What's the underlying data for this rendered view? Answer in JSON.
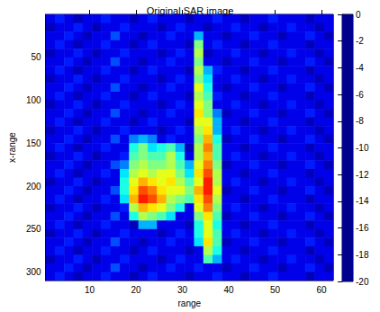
{
  "chart_data": {
    "type": "heatmap",
    "title": "Original SAR image",
    "x_label": "range",
    "y_label": "x-range",
    "xlim": [
      0.5,
      62.5
    ],
    "xticks": [
      10,
      20,
      30,
      40,
      50,
      60
    ],
    "ylim": [
      0,
      310
    ],
    "yticks": [
      50,
      100,
      150,
      200,
      250,
      300
    ],
    "x": [
      1.5,
      3.5,
      5.5,
      7.5,
      9.5,
      11.5,
      13.5,
      15.5,
      17.5,
      19.5,
      21.5,
      23.5,
      25.5,
      27.5,
      29.5,
      31.5,
      33.5,
      35.5,
      37.5,
      39.5,
      41.5,
      43.5,
      45.5,
      47.5,
      49.5,
      51.5,
      53.5,
      55.5,
      57.5,
      59.5,
      61.5
    ],
    "y": [
      5,
      15,
      25,
      35,
      45,
      55,
      65,
      75,
      85,
      95,
      105,
      115,
      125,
      135,
      145,
      155,
      165,
      175,
      185,
      195,
      205,
      215,
      225,
      235,
      245,
      255,
      265,
      275,
      285,
      295,
      305
    ],
    "cells": [
      [
        -18,
        -17,
        -18,
        -19,
        -18,
        -18,
        -17,
        -18,
        -18,
        -19,
        -18,
        -17,
        -18,
        -18,
        -18,
        -19,
        -18,
        -18,
        -17,
        -18,
        -18,
        -19,
        -18,
        -18,
        -17,
        -18,
        -18,
        -18,
        -19,
        -18,
        -18
      ],
      [
        -19,
        -18,
        -18,
        -17,
        -18,
        -19,
        -18,
        -18,
        -17,
        -18,
        -18,
        -18,
        -19,
        -18,
        -17,
        -18,
        -18,
        -19,
        -18,
        -18,
        -17,
        -18,
        -18,
        -19,
        -18,
        -18,
        -17,
        -18,
        -18,
        -19,
        -18
      ],
      [
        -18,
        -18,
        -17,
        -18,
        -19,
        -18,
        -18,
        -16,
        -18,
        -18,
        -19,
        -18,
        -18,
        -17,
        -18,
        -18,
        -14,
        -18,
        -18,
        -19,
        -18,
        -18,
        -17,
        -18,
        -18,
        -19,
        -18,
        -18,
        -17,
        -18,
        -19
      ],
      [
        -18,
        -17,
        -18,
        -19,
        -18,
        -18,
        -17,
        -18,
        -18,
        -19,
        -18,
        -17,
        -18,
        -18,
        -18,
        -19,
        -10,
        -18,
        -17,
        -18,
        -18,
        -19,
        -18,
        -18,
        -17,
        -18,
        -18,
        -18,
        -19,
        -18,
        -18
      ],
      [
        -19,
        -18,
        -18,
        -17,
        -18,
        -19,
        -18,
        -18,
        -17,
        -18,
        -18,
        -18,
        -19,
        -18,
        -17,
        -18,
        -9,
        -19,
        -18,
        -18,
        -17,
        -18,
        -18,
        -19,
        -18,
        -18,
        -17,
        -18,
        -18,
        -19,
        -18
      ],
      [
        -18,
        -18,
        -17,
        -18,
        -19,
        -18,
        -18,
        -16,
        -18,
        -18,
        -19,
        -18,
        -18,
        -17,
        -18,
        -18,
        -10,
        -18,
        -18,
        -19,
        -18,
        -18,
        -17,
        -18,
        -18,
        -19,
        -18,
        -18,
        -17,
        -18,
        -19
      ],
      [
        -18,
        -17,
        -18,
        -19,
        -18,
        -18,
        -17,
        -18,
        -18,
        -19,
        -18,
        -17,
        -18,
        -18,
        -18,
        -19,
        -9,
        -14,
        -17,
        -18,
        -18,
        -19,
        -18,
        -18,
        -17,
        -18,
        -18,
        -18,
        -19,
        -18,
        -18
      ],
      [
        -19,
        -18,
        -18,
        -17,
        -18,
        -19,
        -18,
        -18,
        -17,
        -18,
        -18,
        -18,
        -19,
        -18,
        -17,
        -18,
        -10,
        -13,
        -18,
        -18,
        -17,
        -18,
        -18,
        -19,
        -18,
        -18,
        -17,
        -18,
        -18,
        -19,
        -18
      ],
      [
        -18,
        -18,
        -17,
        -18,
        -19,
        -18,
        -18,
        -16,
        -18,
        -18,
        -19,
        -18,
        -18,
        -17,
        -18,
        -18,
        -8,
        -12,
        -18,
        -19,
        -18,
        -18,
        -17,
        -18,
        -18,
        -19,
        -18,
        -18,
        -17,
        -18,
        -19
      ],
      [
        -18,
        -17,
        -18,
        -19,
        -18,
        -18,
        -17,
        -18,
        -18,
        -19,
        -18,
        -17,
        -18,
        -18,
        -18,
        -19,
        -9,
        -11,
        -17,
        -18,
        -18,
        -19,
        -18,
        -18,
        -17,
        -18,
        -18,
        -18,
        -19,
        -18,
        -18
      ],
      [
        -19,
        -18,
        -18,
        -17,
        -18,
        -19,
        -18,
        -18,
        -17,
        -18,
        -18,
        -18,
        -19,
        -18,
        -17,
        -18,
        -8,
        -10,
        -18,
        -18,
        -17,
        -18,
        -18,
        -19,
        -18,
        -18,
        -17,
        -18,
        -18,
        -19,
        -18
      ],
      [
        -18,
        -18,
        -17,
        -18,
        -19,
        -18,
        -18,
        -16,
        -18,
        -18,
        -19,
        -18,
        -18,
        -17,
        -18,
        -18,
        -7,
        -10,
        -15,
        -19,
        -18,
        -18,
        -17,
        -18,
        -18,
        -19,
        -18,
        -18,
        -17,
        -18,
        -19
      ],
      [
        -18,
        -17,
        -18,
        -19,
        -18,
        -18,
        -17,
        -18,
        -18,
        -19,
        -18,
        -17,
        -18,
        -18,
        -18,
        -19,
        -8,
        -8,
        -14,
        -18,
        -18,
        -19,
        -18,
        -18,
        -17,
        -18,
        -18,
        -18,
        -19,
        -18,
        -18
      ],
      [
        -19,
        -18,
        -18,
        -17,
        -18,
        -19,
        -18,
        -18,
        -17,
        -18,
        -18,
        -18,
        -19,
        -18,
        -17,
        -18,
        -9,
        -7,
        -14,
        -18,
        -17,
        -18,
        -18,
        -19,
        -18,
        -18,
        -17,
        -18,
        -18,
        -19,
        -18
      ],
      [
        -18,
        -18,
        -17,
        -18,
        -19,
        -18,
        -18,
        -16,
        -18,
        -15,
        -14,
        -15,
        -18,
        -17,
        -18,
        -18,
        -10,
        -6,
        -12,
        -19,
        -18,
        -18,
        -17,
        -18,
        -18,
        -19,
        -18,
        -18,
        -17,
        -18,
        -19
      ],
      [
        -18,
        -17,
        -18,
        -19,
        -18,
        -18,
        -17,
        -18,
        -18,
        -12,
        -10,
        -13,
        -12,
        -11,
        -14,
        -19,
        -9,
        -5,
        -11,
        -18,
        -18,
        -19,
        -18,
        -18,
        -17,
        -18,
        -18,
        -18,
        -19,
        -18,
        -18
      ],
      [
        -19,
        -18,
        -18,
        -17,
        -18,
        -19,
        -18,
        -18,
        -17,
        -11,
        -10,
        -11,
        -11,
        -9,
        -12,
        -18,
        -9,
        -6,
        -11,
        -18,
        -17,
        -18,
        -18,
        -19,
        -18,
        -18,
        -17,
        -18,
        -18,
        -19,
        -18
      ],
      [
        -18,
        -18,
        -17,
        -18,
        -19,
        -18,
        -18,
        -16,
        -15,
        -10,
        -9,
        -10,
        -10,
        -9,
        -11,
        -14,
        -8,
        -5,
        -10,
        -19,
        -18,
        -18,
        -17,
        -18,
        -18,
        -19,
        -18,
        -18,
        -17,
        -18,
        -19
      ],
      [
        -18,
        -17,
        -18,
        -19,
        -18,
        -18,
        -17,
        -18,
        -13,
        -9,
        -8,
        -9,
        -8,
        -8,
        -10,
        -13,
        -7,
        -4,
        -9,
        -18,
        -18,
        -19,
        -18,
        -18,
        -17,
        -18,
        -18,
        -18,
        -19,
        -18,
        -18
      ],
      [
        -19,
        -18,
        -18,
        -17,
        -18,
        -19,
        -18,
        -18,
        -12,
        -8,
        -6,
        -7,
        -8,
        -7,
        -9,
        -11,
        -8,
        -3,
        -9,
        -18,
        -17,
        -18,
        -18,
        -19,
        -18,
        -18,
        -17,
        -18,
        -18,
        -19,
        -18
      ],
      [
        -18,
        -18,
        -17,
        -18,
        -19,
        -18,
        -18,
        -16,
        -12,
        -7,
        -4,
        -5,
        -7,
        -8,
        -8,
        -10,
        -6,
        -3,
        -8,
        -19,
        -18,
        -18,
        -17,
        -18,
        -18,
        -19,
        -18,
        -18,
        -17,
        -18,
        -19
      ],
      [
        -18,
        -17,
        -18,
        -19,
        -18,
        -18,
        -17,
        -18,
        -13,
        -6,
        -3,
        -4,
        -6,
        -9,
        -10,
        -11,
        -7,
        -4,
        -9,
        -18,
        -18,
        -19,
        -18,
        -18,
        -17,
        -18,
        -18,
        -18,
        -19,
        -18,
        -18
      ],
      [
        -19,
        -18,
        -18,
        -17,
        -18,
        -19,
        -18,
        -18,
        -17,
        -9,
        -6,
        -7,
        -8,
        -10,
        -12,
        -18,
        -8,
        -5,
        -10,
        -18,
        -17,
        -18,
        -18,
        -19,
        -18,
        -18,
        -17,
        -18,
        -18,
        -19,
        -18
      ],
      [
        -18,
        -18,
        -17,
        -18,
        -19,
        -18,
        -18,
        -16,
        -18,
        -12,
        -9,
        -10,
        -11,
        -13,
        -18,
        -18,
        -10,
        -7,
        -11,
        -19,
        -18,
        -18,
        -17,
        -18,
        -18,
        -19,
        -18,
        -18,
        -17,
        -18,
        -19
      ],
      [
        -18,
        -17,
        -18,
        -19,
        -18,
        -18,
        -17,
        -18,
        -18,
        -19,
        -14,
        -14,
        -18,
        -18,
        -18,
        -19,
        -12,
        -8,
        -12,
        -18,
        -18,
        -19,
        -18,
        -18,
        -17,
        -18,
        -18,
        -18,
        -19,
        -18,
        -18
      ],
      [
        -19,
        -18,
        -18,
        -17,
        -18,
        -19,
        -18,
        -18,
        -17,
        -18,
        -18,
        -18,
        -19,
        -18,
        -17,
        -18,
        -12,
        -8,
        -11,
        -18,
        -17,
        -18,
        -18,
        -19,
        -18,
        -18,
        -17,
        -18,
        -18,
        -19,
        -18
      ],
      [
        -18,
        -18,
        -17,
        -18,
        -19,
        -18,
        -18,
        -16,
        -18,
        -18,
        -19,
        -18,
        -18,
        -17,
        -18,
        -18,
        -13,
        -7,
        -11,
        -19,
        -18,
        -18,
        -17,
        -18,
        -18,
        -19,
        -18,
        -18,
        -17,
        -18,
        -19
      ],
      [
        -18,
        -17,
        -18,
        -19,
        -18,
        -18,
        -17,
        -18,
        -18,
        -19,
        -18,
        -17,
        -18,
        -18,
        -18,
        -19,
        -18,
        -9,
        -12,
        -18,
        -18,
        -19,
        -18,
        -18,
        -17,
        -18,
        -18,
        -18,
        -19,
        -18,
        -18
      ],
      [
        -19,
        -18,
        -18,
        -17,
        -18,
        -19,
        -18,
        -18,
        -17,
        -18,
        -18,
        -18,
        -19,
        -18,
        -17,
        -18,
        -18,
        -11,
        -14,
        -18,
        -17,
        -18,
        -18,
        -19,
        -18,
        -18,
        -17,
        -18,
        -18,
        -19,
        -18
      ],
      [
        -18,
        -18,
        -17,
        -18,
        -19,
        -18,
        -18,
        -16,
        -18,
        -18,
        -19,
        -18,
        -18,
        -17,
        -18,
        -18,
        -17,
        -18,
        -18,
        -19,
        -18,
        -18,
        -17,
        -18,
        -18,
        -19,
        -18,
        -18,
        -17,
        -18,
        -19
      ],
      [
        -18,
        -17,
        -18,
        -19,
        -18,
        -18,
        -17,
        -18,
        -18,
        -19,
        -18,
        -17,
        -18,
        -18,
        -18,
        -19,
        -18,
        -18,
        -17,
        -18,
        -18,
        -19,
        -18,
        -18,
        -17,
        -18,
        -18,
        -18,
        -19,
        -18,
        -18
      ]
    ],
    "colorbar": {
      "range": [
        -20,
        0
      ],
      "ticks": [
        0,
        -2,
        -4,
        -6,
        -8,
        -10,
        -12,
        -14,
        -16,
        -18,
        -20
      ]
    }
  }
}
